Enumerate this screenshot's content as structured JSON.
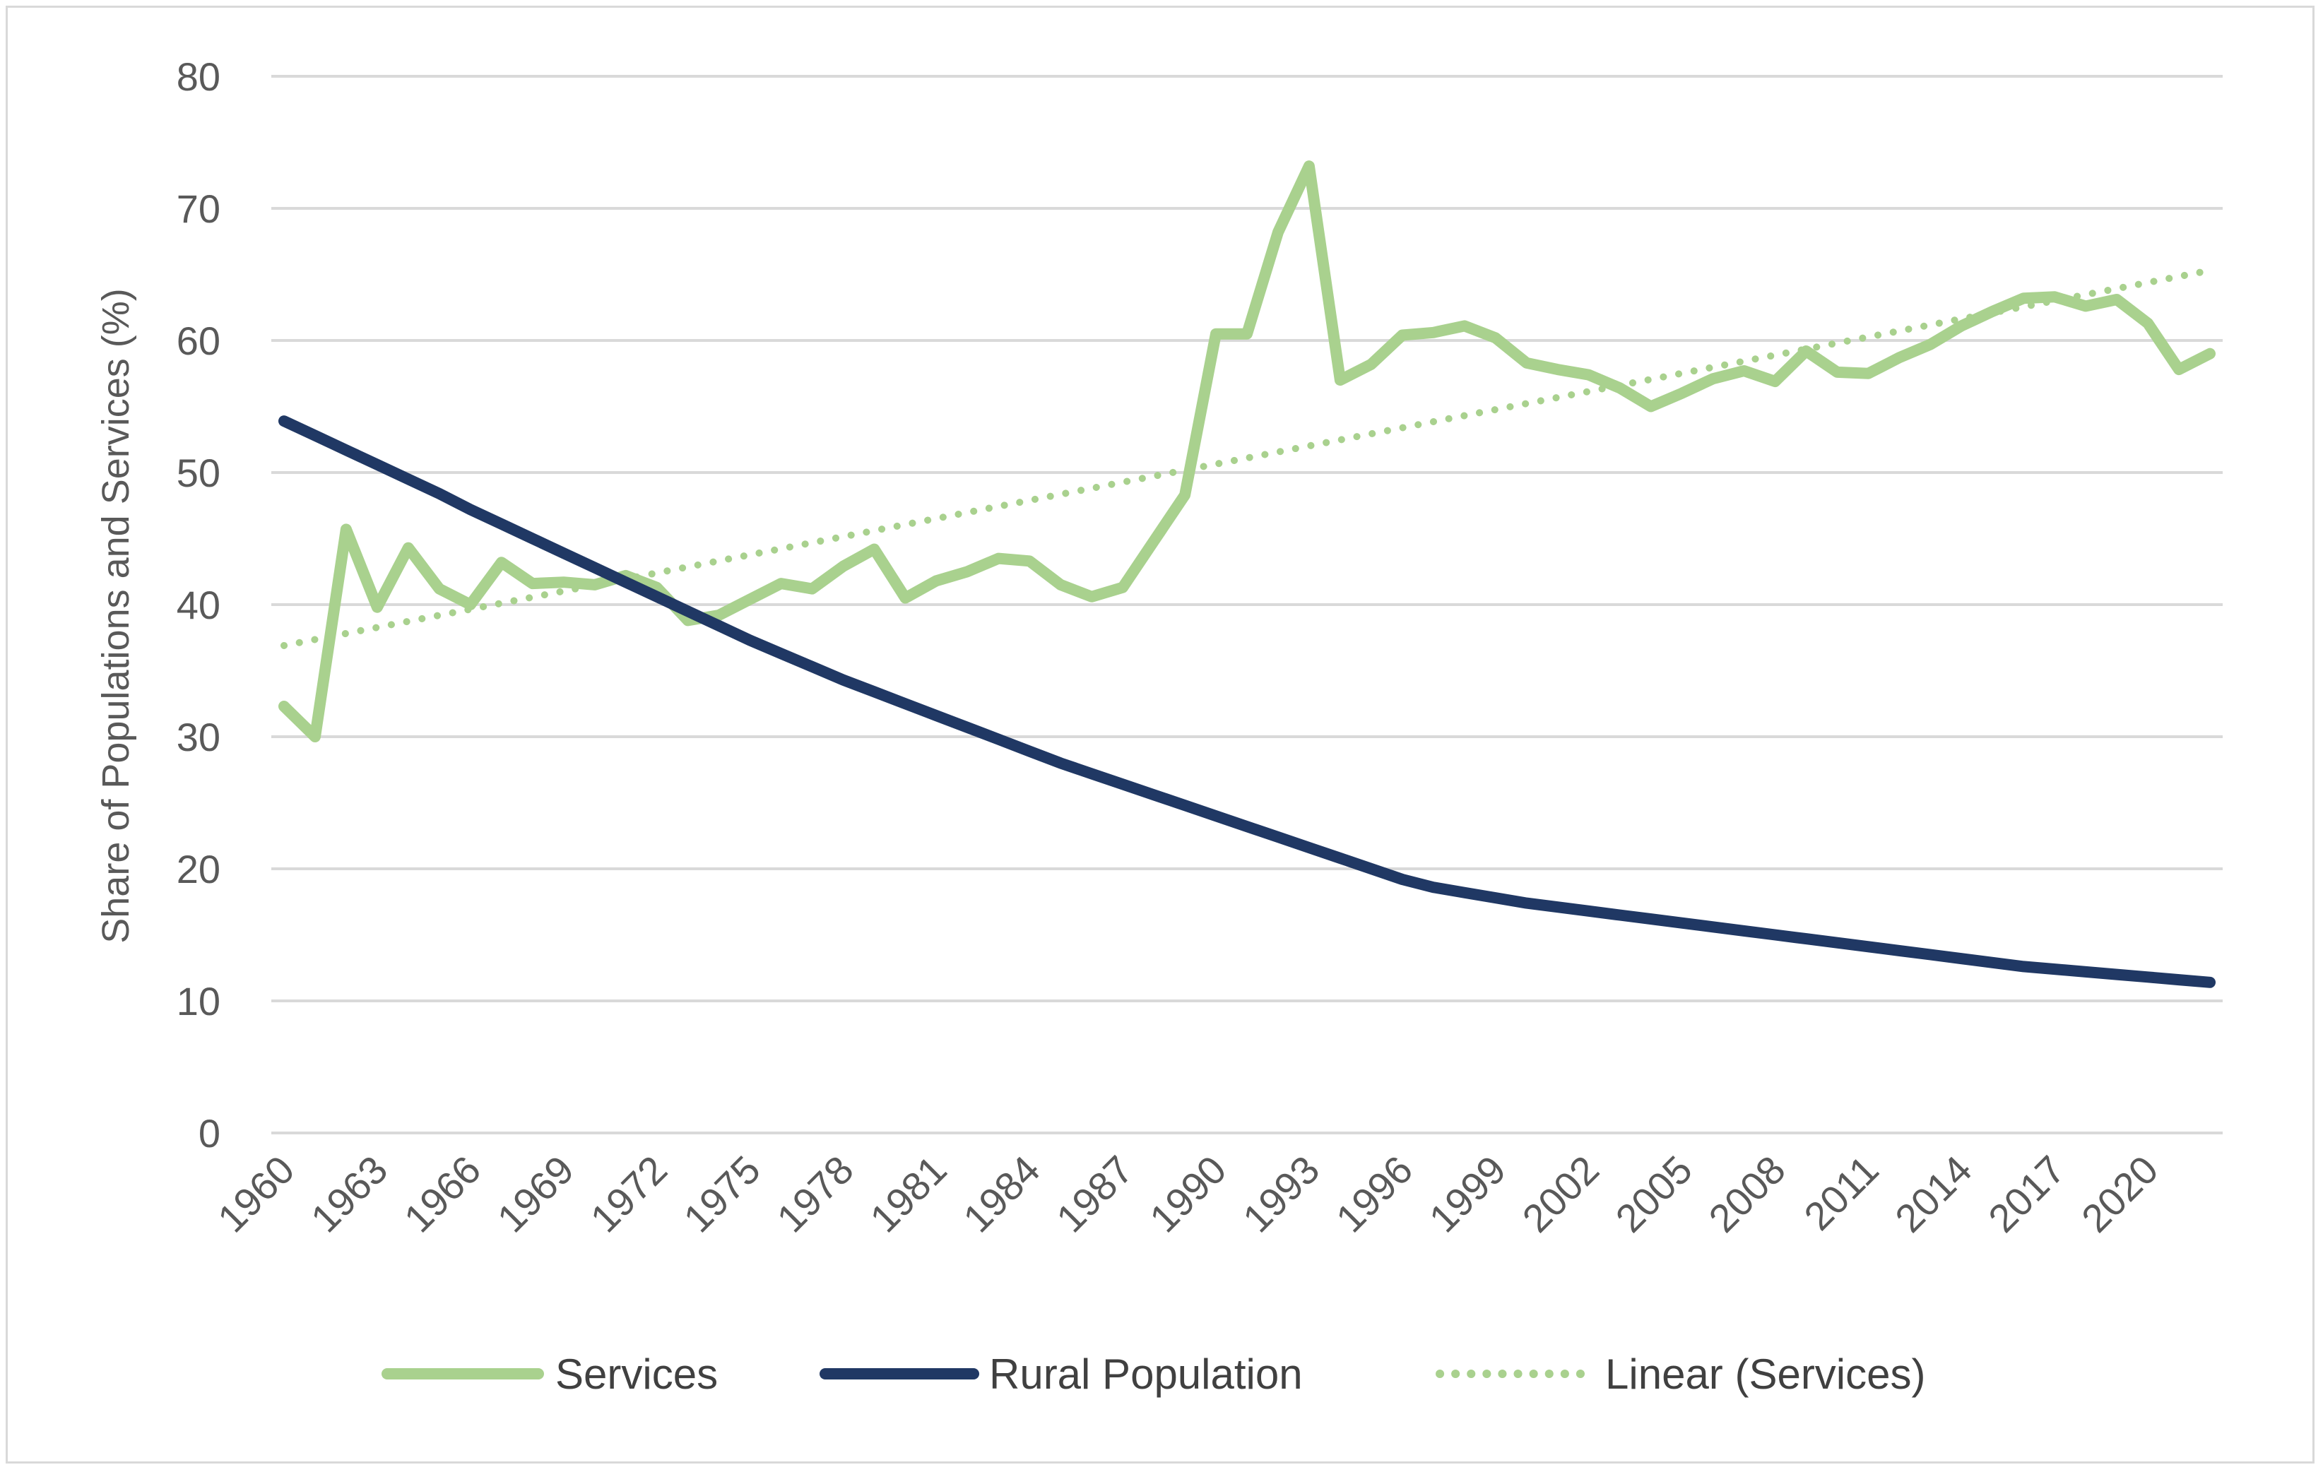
{
  "chart_data": {
    "type": "line",
    "title": "",
    "xlabel": "",
    "ylabel": "Share of Populations and Services (%)",
    "ylim": [
      0,
      80
    ],
    "yticks": [
      0,
      10,
      20,
      30,
      40,
      50,
      60,
      70,
      80
    ],
    "grid": true,
    "legend_position": "bottom",
    "x": [
      1960,
      1961,
      1962,
      1963,
      1964,
      1965,
      1966,
      1967,
      1968,
      1969,
      1970,
      1971,
      1972,
      1973,
      1974,
      1975,
      1976,
      1977,
      1978,
      1979,
      1980,
      1981,
      1982,
      1983,
      1984,
      1985,
      1986,
      1987,
      1988,
      1989,
      1990,
      1991,
      1992,
      1993,
      1994,
      1995,
      1996,
      1997,
      1998,
      1999,
      2000,
      2001,
      2002,
      2003,
      2004,
      2005,
      2006,
      2007,
      2008,
      2009,
      2010,
      2011,
      2012,
      2013,
      2014,
      2015,
      2016,
      2017,
      2018,
      2019,
      2020,
      2021,
      2022
    ],
    "tick_labels": [
      "1960",
      "1963",
      "1966",
      "1969",
      "1972",
      "1975",
      "1978",
      "1981",
      "1984",
      "1987",
      "1990",
      "1993",
      "1996",
      "1999",
      "2002",
      "2005",
      "2008",
      "2011",
      "2014",
      "2017",
      "2020"
    ],
    "series": [
      {
        "name": "Services",
        "color": "#a9d18e",
        "style": "solid",
        "values": [
          32.3,
          30.0,
          45.7,
          39.8,
          44.3,
          41.2,
          40.0,
          43.2,
          41.6,
          41.7,
          41.5,
          42.2,
          41.3,
          38.8,
          39.2,
          40.4,
          41.6,
          41.2,
          42.9,
          44.2,
          40.5,
          41.8,
          42.5,
          43.5,
          43.3,
          41.5,
          40.6,
          41.3,
          44.8,
          48.3,
          60.5,
          60.5,
          68.2,
          73.2,
          57.0,
          58.2,
          60.4,
          60.6,
          61.1,
          60.2,
          58.3,
          57.8,
          57.4,
          56.4,
          55.0,
          56.0,
          57.1,
          57.7,
          56.9,
          59.2,
          57.6,
          57.5,
          58.7,
          59.7,
          61.1,
          62.2,
          63.2,
          63.3,
          62.6,
          63.1,
          61.3,
          57.8,
          59.0
        ]
      },
      {
        "name": "Rural Population",
        "color": "#203864",
        "style": "solid",
        "values": [
          53.9,
          52.8,
          51.7,
          50.6,
          49.5,
          48.4,
          47.2,
          46.1,
          45.0,
          43.9,
          42.8,
          41.7,
          40.6,
          39.5,
          38.4,
          37.3,
          36.3,
          35.3,
          34.3,
          33.4,
          32.5,
          31.6,
          30.7,
          29.8,
          28.9,
          28.0,
          27.2,
          26.4,
          25.6,
          24.8,
          24.0,
          23.2,
          22.4,
          21.6,
          20.8,
          20.0,
          19.2,
          18.6,
          18.2,
          17.8,
          17.4,
          17.1,
          16.8,
          16.5,
          16.2,
          15.9,
          15.6,
          15.3,
          15.0,
          14.7,
          14.4,
          14.1,
          13.8,
          13.5,
          13.2,
          12.9,
          12.6,
          12.4,
          12.2,
          12.0,
          11.8,
          11.6,
          11.4
        ]
      },
      {
        "name": "Linear (Services)",
        "color": "#a9d18e",
        "style": "dotted",
        "start": 36.9,
        "end": 65.3
      }
    ]
  },
  "legend": {
    "services": "Services",
    "rural": "Rural Population",
    "linear": "Linear (Services)"
  }
}
